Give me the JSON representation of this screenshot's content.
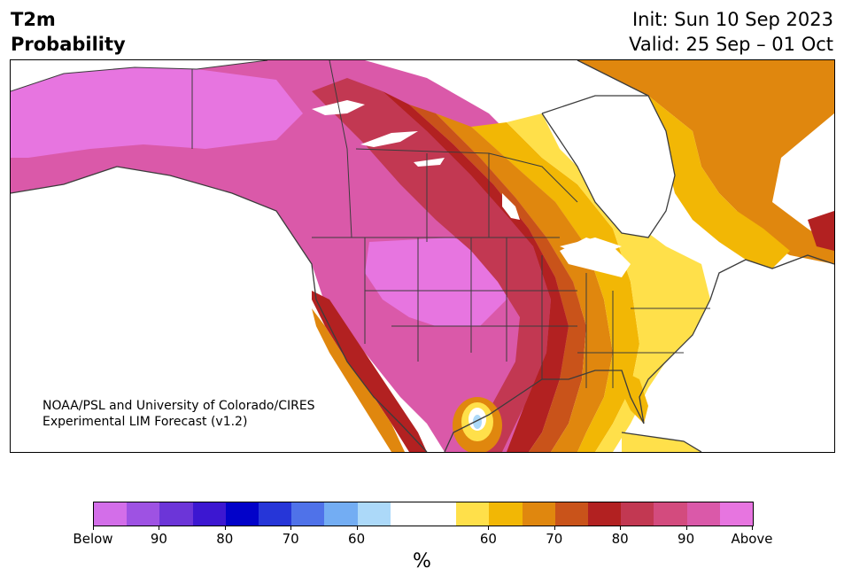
{
  "header": {
    "variable": "T2m",
    "product": "Probability",
    "init": "Init: Sun 10 Sep 2023",
    "valid": "Valid: 25 Sep – 01 Oct"
  },
  "credit": {
    "line1": "NOAA/PSL and University of Colorado/CIRES",
    "line2": "Experimental LIM Forecast (v1.2)"
  },
  "colorbar": {
    "colors": [
      "#d36ee9",
      "#9e52e3",
      "#6c35d8",
      "#3c17d1",
      "#0202c9",
      "#2636d8",
      "#4f72e9",
      "#73adf3",
      "#acd9f9",
      "#ffffff",
      "#ffffff",
      "#ffe04a",
      "#f2b705",
      "#e0870e",
      "#c9531a",
      "#b22121",
      "#c23852",
      "#d34b7e",
      "#da59a9",
      "#e775e0"
    ],
    "labels": [
      "Below",
      "90",
      "80",
      "70",
      "60",
      "60",
      "70",
      "80",
      "90",
      "Above"
    ],
    "unit": "%"
  },
  "map": {
    "region": "North America",
    "colors": {
      "above": "#e775e0",
      "p90": "#da59a9",
      "p85": "#d34b7e",
      "p80": "#c23852",
      "p75": "#b22121",
      "p70": "#c9531a",
      "p65": "#e0870e",
      "p60": "#f2b705",
      "p55": "#ffe04a",
      "neutral": "#ffffff",
      "below60": "#acd9f9",
      "border": "#3c3c3c"
    }
  }
}
